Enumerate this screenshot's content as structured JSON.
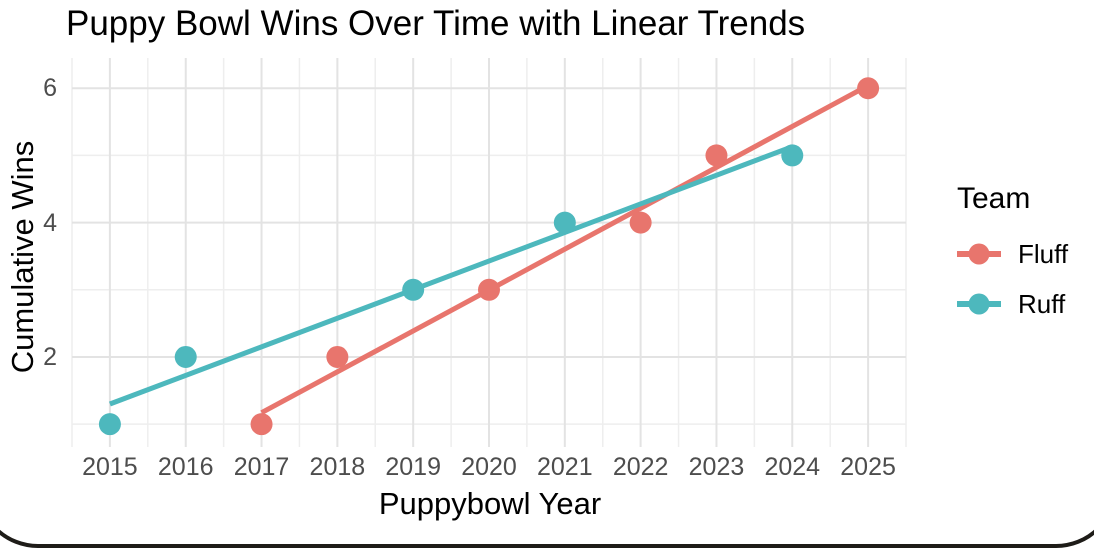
{
  "frame": {
    "border_color": "#1e1c18"
  },
  "chart_data": {
    "type": "scatter",
    "title": "Puppy Bowl Wins Over Time with Linear Trends",
    "xlabel": "Puppybowl Year",
    "ylabel": "Cumulative Wins",
    "x_ticks": [
      2015,
      2016,
      2017,
      2018,
      2019,
      2020,
      2021,
      2022,
      2023,
      2024,
      2025
    ],
    "y_ticks": [
      2,
      4,
      6
    ],
    "y_minor_ticks": [
      1,
      3,
      5
    ],
    "x_range": [
      2014.5,
      2025.5
    ],
    "y_range": [
      0.66,
      6.45
    ],
    "grid": {
      "show": true,
      "major_color": "#e3e3e3",
      "minor_color": "#eeeeee",
      "background": "#ffffff"
    },
    "point_radius": 11,
    "trend_line_width": 5,
    "legend": {
      "title": "Team",
      "position": "right",
      "entries": [
        {
          "name": "Fluff",
          "color": "#e8756d"
        },
        {
          "name": "Ruff",
          "color": "#4db8bd"
        }
      ]
    },
    "series": [
      {
        "name": "Fluff",
        "color": "#e8756d",
        "points": [
          [
            2017,
            1
          ],
          [
            2018,
            2
          ],
          [
            2020,
            3
          ],
          [
            2022,
            4
          ],
          [
            2023,
            5
          ],
          [
            2025,
            6
          ]
        ],
        "trend_line": {
          "x": [
            2017,
            2025
          ],
          "y": [
            1.17,
            6.04
          ]
        }
      },
      {
        "name": "Ruff",
        "color": "#4db8bd",
        "points": [
          [
            2015,
            1
          ],
          [
            2016,
            2
          ],
          [
            2019,
            3
          ],
          [
            2021,
            4
          ],
          [
            2024,
            5
          ]
        ],
        "trend_line": {
          "x": [
            2015,
            2024
          ],
          "y": [
            1.3,
            5.13
          ]
        }
      }
    ],
    "text_colors": {
      "title": "#000000",
      "axis_title": "#000000",
      "tick_label": "#4d4d4d"
    }
  }
}
